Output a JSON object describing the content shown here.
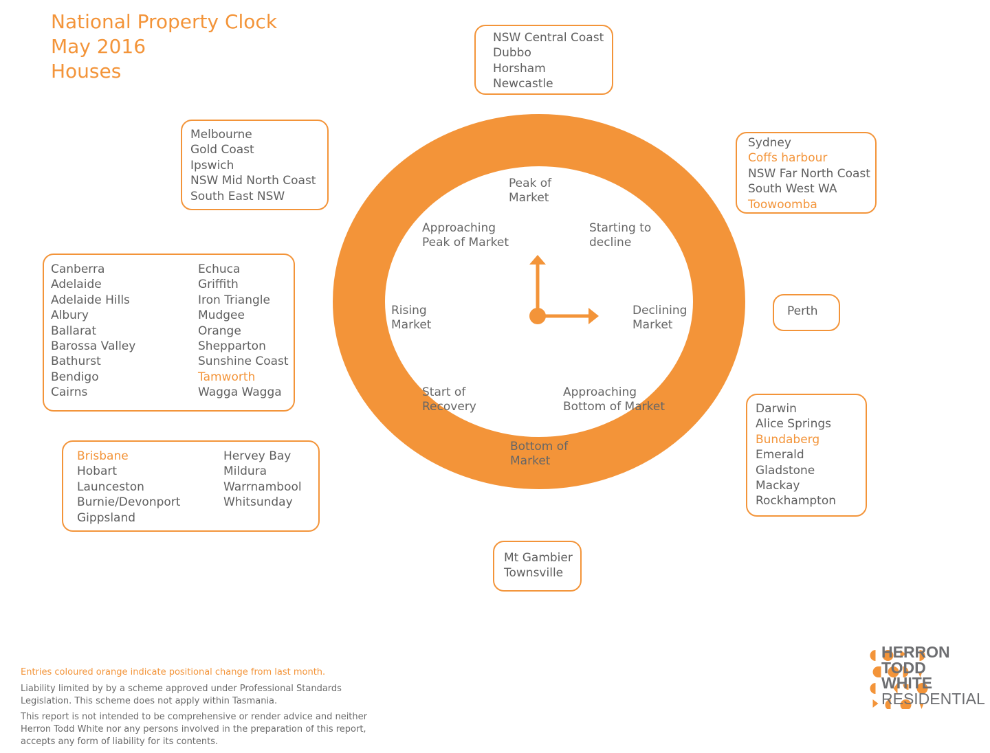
{
  "title": {
    "line1": "National Property Clock",
    "line2": "May 2016",
    "line3": "Houses"
  },
  "colors": {
    "accent": "#f39439",
    "text": "#5f5f5f"
  },
  "clock": {
    "phases": {
      "peak": "Peak of\nMarket",
      "starting_decline": "Starting to\ndecline",
      "declining": "Declining\nMarket",
      "approaching_bottom": "Approaching\nBottom of Market",
      "bottom": "Bottom of\nMarket",
      "start_recovery": "Start of\nRecovery",
      "rising": "Rising\nMarket",
      "approaching_peak": "Approaching\nPeak of Market"
    }
  },
  "groups": {
    "peak": {
      "items": [
        {
          "name": "NSW Central Coast",
          "highlight": false
        },
        {
          "name": "Dubbo",
          "highlight": false
        },
        {
          "name": "Horsham",
          "highlight": false
        },
        {
          "name": "Newcastle",
          "highlight": false
        }
      ]
    },
    "starting_decline": {
      "items": [
        {
          "name": "Sydney",
          "highlight": false
        },
        {
          "name": "Coffs harbour",
          "highlight": true
        },
        {
          "name": "NSW Far North Coast",
          "highlight": false
        },
        {
          "name": "South West WA",
          "highlight": false
        },
        {
          "name": "Toowoomba",
          "highlight": true
        }
      ]
    },
    "declining": {
      "items": [
        {
          "name": "Perth",
          "highlight": false
        }
      ]
    },
    "approaching_bottom": {
      "items": [
        {
          "name": "Darwin",
          "highlight": false
        },
        {
          "name": "Alice Springs",
          "highlight": false
        },
        {
          "name": "Bundaberg",
          "highlight": true
        },
        {
          "name": "Emerald",
          "highlight": false
        },
        {
          "name": "Gladstone",
          "highlight": false
        },
        {
          "name": "Mackay",
          "highlight": false
        },
        {
          "name": "Rockhampton",
          "highlight": false
        }
      ]
    },
    "bottom": {
      "items": [
        {
          "name": "Mt Gambier",
          "highlight": false
        },
        {
          "name": "Townsville",
          "highlight": false
        }
      ]
    },
    "start_recovery": {
      "col1": [
        {
          "name": "Brisbane",
          "highlight": true
        },
        {
          "name": "Hobart",
          "highlight": false
        },
        {
          "name": "Launceston",
          "highlight": false
        },
        {
          "name": "Burnie/Devonport",
          "highlight": false
        },
        {
          "name": "Gippsland",
          "highlight": false
        }
      ],
      "col2": [
        {
          "name": "Hervey Bay",
          "highlight": false
        },
        {
          "name": "Mildura",
          "highlight": false
        },
        {
          "name": "Warrnambool",
          "highlight": false
        },
        {
          "name": "Whitsunday",
          "highlight": false
        }
      ]
    },
    "rising": {
      "col1": [
        {
          "name": "Canberra",
          "highlight": false
        },
        {
          "name": "Adelaide",
          "highlight": false
        },
        {
          "name": "Adelaide Hills",
          "highlight": false
        },
        {
          "name": "Albury",
          "highlight": false
        },
        {
          "name": "Ballarat",
          "highlight": false
        },
        {
          "name": "Barossa Valley",
          "highlight": false
        },
        {
          "name": "Bathurst",
          "highlight": false
        },
        {
          "name": "Bendigo",
          "highlight": false
        },
        {
          "name": "Cairns",
          "highlight": false
        }
      ],
      "col2": [
        {
          "name": "Echuca",
          "highlight": false
        },
        {
          "name": "Griffith",
          "highlight": false
        },
        {
          "name": "Iron Triangle",
          "highlight": false
        },
        {
          "name": "Mudgee",
          "highlight": false
        },
        {
          "name": "Orange",
          "highlight": false
        },
        {
          "name": "Shepparton",
          "highlight": false
        },
        {
          "name": "Sunshine Coast",
          "highlight": false
        },
        {
          "name": "Tamworth",
          "highlight": true
        },
        {
          "name": "Wagga Wagga",
          "highlight": false
        }
      ]
    },
    "approaching_peak": {
      "items": [
        {
          "name": "Melbourne",
          "highlight": false
        },
        {
          "name": "Gold Coast",
          "highlight": false
        },
        {
          "name": "Ipswich",
          "highlight": false
        },
        {
          "name": "NSW Mid North Coast",
          "highlight": false
        },
        {
          "name": "South East NSW",
          "highlight": false
        }
      ]
    }
  },
  "notes": {
    "legend": "Entries coloured orange indicate positional change from last month.",
    "liability": "Liability limited by by a scheme approved under Professional Standards Legislation. This scheme does not apply within Tasmania.",
    "disclaimer": "This report is not intended to be comprehensive or render advice and neither Herron Todd White nor any persons involved in the preparation of this report, accepts any form of liability for its contents."
  },
  "logo": {
    "line1": "HERRON",
    "line2": "TODD",
    "line3": "WHITE",
    "line4": "RESIDENTIAL"
  }
}
